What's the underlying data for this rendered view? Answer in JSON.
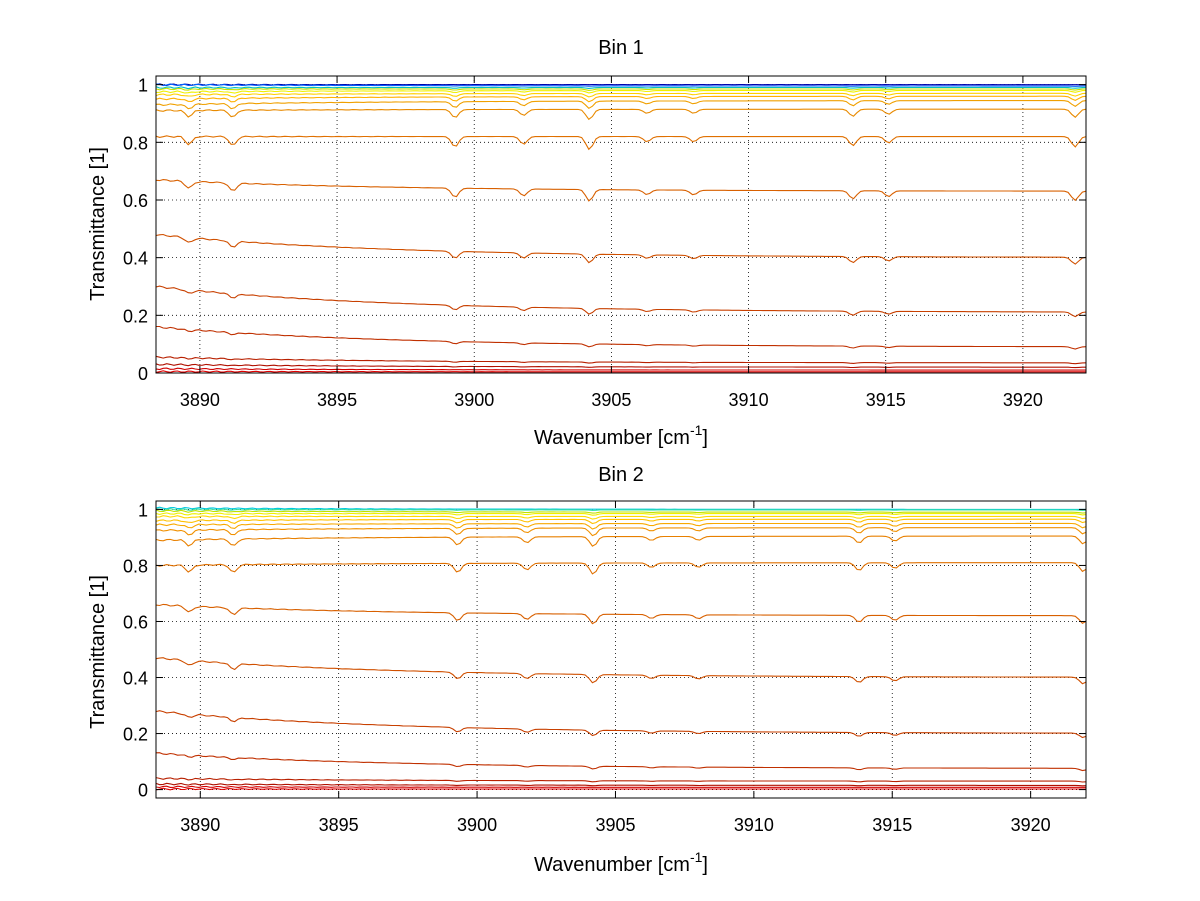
{
  "chart_data": [
    {
      "type": "line",
      "title": "Bin 1",
      "xlabel": "Wavenumber [cm",
      "xlabel_sup": "-1",
      "xlabel_end": "]",
      "ylabel": "Transmittance [1]",
      "xlim": [
        3888.4,
        3922.3
      ],
      "ylim": [
        0,
        1.03
      ],
      "xticks": [
        3890,
        3895,
        3900,
        3905,
        3910,
        3915,
        3920
      ],
      "yticks": [
        0,
        0.2,
        0.4,
        0.6,
        0.8,
        1
      ],
      "ytick_labels": [
        "0",
        "0.2",
        "0.4",
        "0.6",
        "0.8",
        "1"
      ],
      "grid": true,
      "series": [
        {
          "values_start": 1.0,
          "values_end": 1.0,
          "color": "#0000aa",
          "dip": 0.0
        },
        {
          "values_start": 1.0,
          "values_end": 0.995,
          "color": "#0060ff",
          "dip": 0.001
        },
        {
          "values_start": 0.99,
          "values_end": 0.99,
          "color": "#00c0c0",
          "dip": 0.003
        },
        {
          "values_start": 0.985,
          "values_end": 0.985,
          "color": "#c8e000",
          "dip": 0.005
        },
        {
          "values_start": 0.975,
          "values_end": 0.98,
          "color": "#f0f000",
          "dip": 0.008
        },
        {
          "values_start": 0.965,
          "values_end": 0.97,
          "color": "#ffd000",
          "dip": 0.012
        },
        {
          "values_start": 0.95,
          "values_end": 0.96,
          "color": "#ffb000",
          "dip": 0.018
        },
        {
          "values_start": 0.93,
          "values_end": 0.945,
          "color": "#f0a000",
          "dip": 0.025
        },
        {
          "values_start": 0.91,
          "values_end": 0.915,
          "color": "#e88a00",
          "dip": 0.035
        },
        {
          "values_start": 0.82,
          "values_end": 0.82,
          "color": "#e07000",
          "dip": 0.045
        },
        {
          "values_start": 0.67,
          "values_end": 0.63,
          "color": "#d86000",
          "dip": 0.04
        },
        {
          "values_start": 0.48,
          "values_end": 0.4,
          "color": "#d05000",
          "dip": 0.03
        },
        {
          "values_start": 0.3,
          "values_end": 0.21,
          "color": "#c84000",
          "dip": 0.02
        },
        {
          "values_start": 0.16,
          "values_end": 0.09,
          "color": "#c03000",
          "dip": 0.01
        },
        {
          "values_start": 0.055,
          "values_end": 0.035,
          "color": "#b82000",
          "dip": 0.004
        },
        {
          "values_start": 0.03,
          "values_end": 0.02,
          "color": "#b01000",
          "dip": 0.002
        },
        {
          "values_start": 0.015,
          "values_end": 0.01,
          "color": "#d00000",
          "dip": 0.0
        },
        {
          "values_start": 0.005,
          "values_end": 0.004,
          "color": "#e00000",
          "dip": 0.0
        }
      ]
    },
    {
      "type": "line",
      "title": "Bin 2",
      "xlabel": "Wavenumber [cm",
      "xlabel_sup": "-1",
      "xlabel_end": "]",
      "ylabel": "Transmittance [1]",
      "xlim": [
        3888.4,
        3922.0
      ],
      "ylim": [
        -0.03,
        1.03
      ],
      "xticks": [
        3890,
        3895,
        3900,
        3905,
        3910,
        3915,
        3920
      ],
      "yticks": [
        0,
        0.2,
        0.4,
        0.6,
        0.8,
        1
      ],
      "ytick_labels": [
        "0",
        "0.2",
        "0.4",
        "0.6",
        "0.8",
        "1"
      ],
      "grid": true,
      "series": [
        {
          "values_start": 1.005,
          "values_end": 1.0,
          "color": "#00c8e0",
          "dip": 0.0
        },
        {
          "values_start": 1.0,
          "values_end": 0.998,
          "color": "#40e0a0",
          "dip": 0.002
        },
        {
          "values_start": 0.995,
          "values_end": 0.99,
          "color": "#c0e000",
          "dip": 0.004
        },
        {
          "values_start": 0.985,
          "values_end": 0.985,
          "color": "#f0f000",
          "dip": 0.006
        },
        {
          "values_start": 0.975,
          "values_end": 0.975,
          "color": "#ffd800",
          "dip": 0.01
        },
        {
          "values_start": 0.96,
          "values_end": 0.965,
          "color": "#ffc000",
          "dip": 0.015
        },
        {
          "values_start": 0.945,
          "values_end": 0.95,
          "color": "#f8a800",
          "dip": 0.02
        },
        {
          "values_start": 0.925,
          "values_end": 0.935,
          "color": "#f09000",
          "dip": 0.028
        },
        {
          "values_start": 0.89,
          "values_end": 0.905,
          "color": "#e88000",
          "dip": 0.035
        },
        {
          "values_start": 0.8,
          "values_end": 0.81,
          "color": "#e07000",
          "dip": 0.04
        },
        {
          "values_start": 0.66,
          "values_end": 0.62,
          "color": "#d86000",
          "dip": 0.035
        },
        {
          "values_start": 0.47,
          "values_end": 0.4,
          "color": "#d05000",
          "dip": 0.03
        },
        {
          "values_start": 0.28,
          "values_end": 0.2,
          "color": "#c84000",
          "dip": 0.02
        },
        {
          "values_start": 0.13,
          "values_end": 0.075,
          "color": "#c03000",
          "dip": 0.01
        },
        {
          "values_start": 0.04,
          "values_end": 0.03,
          "color": "#b82000",
          "dip": 0.004
        },
        {
          "values_start": 0.02,
          "values_end": 0.015,
          "color": "#b01000",
          "dip": 0.002
        },
        {
          "values_start": 0.01,
          "values_end": 0.008,
          "color": "#d00000",
          "dip": 0.0
        },
        {
          "values_start": 0.002,
          "values_end": 0.002,
          "color": "#e00000",
          "dip": 0.0
        }
      ]
    }
  ]
}
